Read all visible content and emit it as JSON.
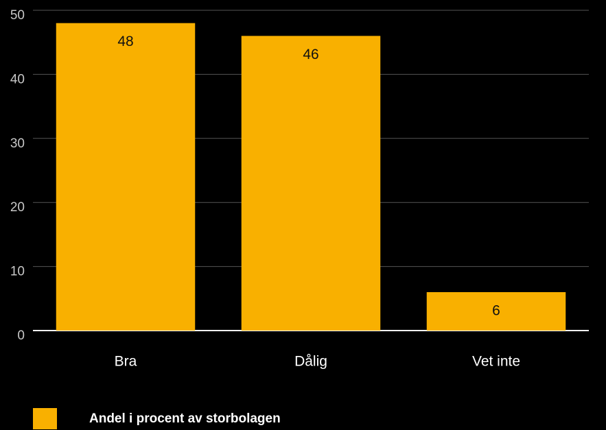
{
  "chart_data": {
    "type": "bar",
    "categories": [
      "Bra",
      "Dålig",
      "Vet inte"
    ],
    "series": [
      {
        "name": "Andel i procent av storbolagen",
        "color": "#f9b000",
        "values": [
          48,
          46,
          6
        ]
      }
    ],
    "ylim": [
      0,
      50
    ],
    "yticks": [
      0,
      10,
      20,
      30,
      40,
      50
    ],
    "grid": true,
    "legend": "bottom-left"
  }
}
